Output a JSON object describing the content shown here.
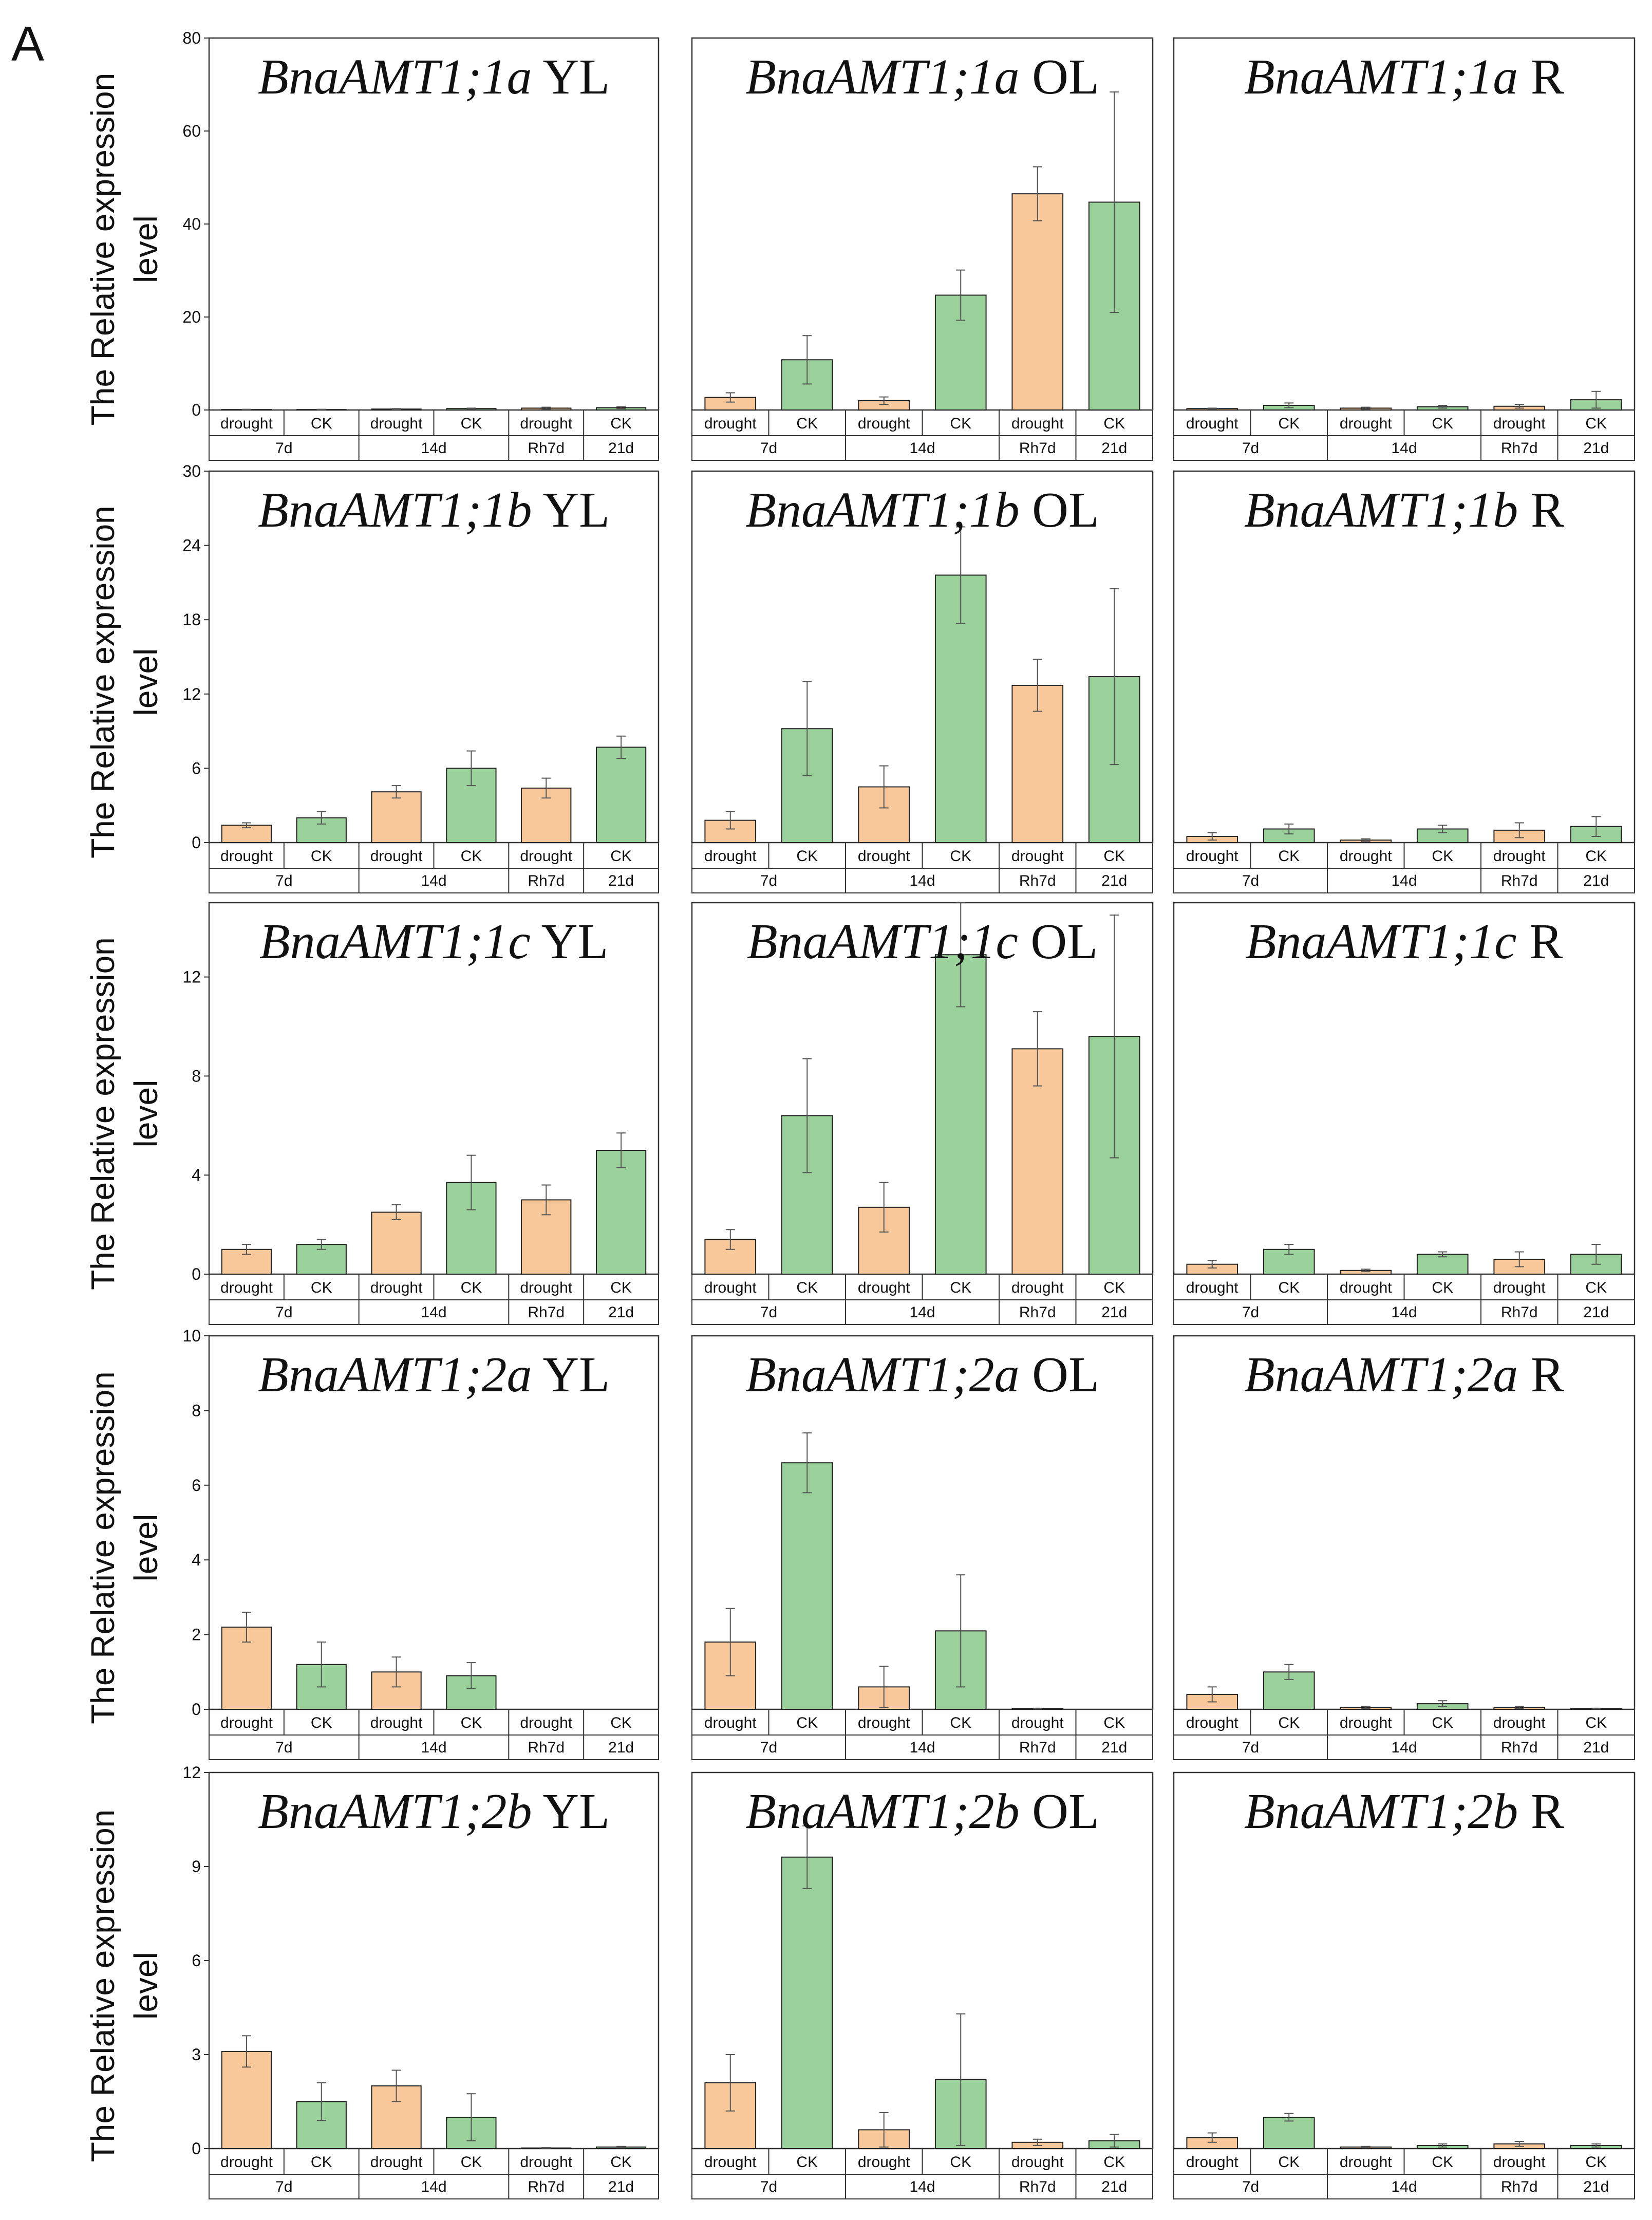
{
  "panel_letter": "A",
  "y_axis_label_line1": "The Relative expression",
  "y_axis_label_line2": "level",
  "colors": {
    "drought": "#f8c89a",
    "ck": "#9ad19a",
    "edge": "#222222",
    "error_bar": "#555555"
  },
  "chart_data": [
    {
      "type": "bar",
      "title_gene": "BnaAMT1;1a",
      "title_tissue": "YL",
      "ylim": [
        0,
        80
      ],
      "yticks": [
        0,
        20,
        40,
        60,
        80
      ],
      "categories": [
        "drought",
        "CK",
        "drought",
        "CK",
        "drought",
        "CK"
      ],
      "groups": [
        "7d",
        "14d",
        "Rh7d",
        "21d"
      ],
      "values": [
        0.1,
        0.1,
        0.2,
        0.3,
        0.4,
        0.5
      ],
      "errors": [
        0.05,
        0.05,
        0.1,
        0.1,
        0.2,
        0.2
      ]
    },
    {
      "type": "bar",
      "title_gene": "BnaAMT1;1a",
      "title_tissue": "OL",
      "ylim": [
        0,
        80
      ],
      "yticks": [
        0,
        20,
        40,
        60,
        80
      ],
      "categories": [
        "drought",
        "CK",
        "drought",
        "CK",
        "drought",
        "CK"
      ],
      "groups": [
        "7d",
        "14d",
        "Rh7d",
        "21d"
      ],
      "values": [
        2.7,
        10.8,
        2.0,
        24.7,
        46.5,
        44.7
      ],
      "errors": [
        1.0,
        5.2,
        0.8,
        5.4,
        5.8,
        23.7
      ]
    },
    {
      "type": "bar",
      "title_gene": "BnaAMT1;1a",
      "title_tissue": "R",
      "ylim": [
        0,
        80
      ],
      "yticks": [
        0,
        20,
        40,
        60,
        80
      ],
      "categories": [
        "drought",
        "CK",
        "drought",
        "CK",
        "drought",
        "CK"
      ],
      "groups": [
        "7d",
        "14d",
        "Rh7d",
        "21d"
      ],
      "values": [
        0.3,
        1.0,
        0.4,
        0.7,
        0.8,
        2.2
      ],
      "errors": [
        0.1,
        0.5,
        0.2,
        0.3,
        0.4,
        1.8
      ]
    },
    {
      "type": "bar",
      "title_gene": "BnaAMT1;1b",
      "title_tissue": "YL",
      "ylim": [
        0,
        30
      ],
      "yticks": [
        0,
        6,
        12,
        18,
        24,
        30
      ],
      "categories": [
        "drought",
        "CK",
        "drought",
        "CK",
        "drought",
        "CK"
      ],
      "groups": [
        "7d",
        "14d",
        "Rh7d",
        "21d"
      ],
      "values": [
        1.4,
        2.0,
        4.1,
        6.0,
        4.4,
        7.7
      ],
      "errors": [
        0.2,
        0.5,
        0.5,
        1.4,
        0.8,
        0.9
      ]
    },
    {
      "type": "bar",
      "title_gene": "BnaAMT1;1b",
      "title_tissue": "OL",
      "ylim": [
        0,
        30
      ],
      "yticks": [
        0,
        6,
        12,
        18,
        24,
        30
      ],
      "categories": [
        "drought",
        "CK",
        "drought",
        "CK",
        "drought",
        "CK"
      ],
      "groups": [
        "7d",
        "14d",
        "Rh7d",
        "21d"
      ],
      "values": [
        1.8,
        9.2,
        4.5,
        21.6,
        12.7,
        13.4
      ],
      "errors": [
        0.7,
        3.8,
        1.7,
        3.9,
        2.1,
        7.1
      ]
    },
    {
      "type": "bar",
      "title_gene": "BnaAMT1;1b",
      "title_tissue": "R",
      "ylim": [
        0,
        30
      ],
      "yticks": [
        0,
        6,
        12,
        18,
        24,
        30
      ],
      "categories": [
        "drought",
        "CK",
        "drought",
        "CK",
        "drought",
        "CK"
      ],
      "groups": [
        "7d",
        "14d",
        "Rh7d",
        "21d"
      ],
      "values": [
        0.5,
        1.1,
        0.2,
        1.1,
        1.0,
        1.3
      ],
      "errors": [
        0.3,
        0.4,
        0.1,
        0.3,
        0.6,
        0.8
      ]
    },
    {
      "type": "bar",
      "title_gene": "BnaAMT1;1c",
      "title_tissue": "YL",
      "ylim": [
        0,
        15
      ],
      "yticks": [
        0,
        4,
        8,
        12
      ],
      "categories": [
        "drought",
        "CK",
        "drought",
        "CK",
        "drought",
        "CK"
      ],
      "groups": [
        "7d",
        "14d",
        "Rh7d",
        "21d"
      ],
      "values": [
        1.0,
        1.2,
        2.5,
        3.7,
        3.0,
        5.0
      ],
      "errors": [
        0.2,
        0.2,
        0.3,
        1.1,
        0.6,
        0.7
      ]
    },
    {
      "type": "bar",
      "title_gene": "BnaAMT1;1c",
      "title_tissue": "OL",
      "ylim": [
        0,
        15
      ],
      "yticks": [
        0,
        4,
        8,
        12
      ],
      "categories": [
        "drought",
        "CK",
        "drought",
        "CK",
        "drought",
        "CK"
      ],
      "groups": [
        "7d",
        "14d",
        "Rh7d",
        "21d"
      ],
      "values": [
        1.4,
        6.4,
        2.7,
        12.9,
        9.1,
        9.6
      ],
      "errors": [
        0.4,
        2.3,
        1.0,
        2.1,
        1.5,
        4.9
      ]
    },
    {
      "type": "bar",
      "title_gene": "BnaAMT1;1c",
      "title_tissue": "R",
      "ylim": [
        0,
        15
      ],
      "yticks": [
        0,
        4,
        8,
        12
      ],
      "categories": [
        "drought",
        "CK",
        "drought",
        "CK",
        "drought",
        "CK"
      ],
      "groups": [
        "7d",
        "14d",
        "Rh7d",
        "21d"
      ],
      "values": [
        0.4,
        1.0,
        0.15,
        0.8,
        0.6,
        0.8
      ],
      "errors": [
        0.15,
        0.2,
        0.05,
        0.1,
        0.3,
        0.4
      ]
    },
    {
      "type": "bar",
      "title_gene": "BnaAMT1;2a",
      "title_tissue": "YL",
      "ylim": [
        0,
        10
      ],
      "yticks": [
        0,
        2,
        4,
        6,
        8,
        10
      ],
      "categories": [
        "drought",
        "CK",
        "drought",
        "CK",
        "drought",
        "CK"
      ],
      "groups": [
        "7d",
        "14d",
        "Rh7d",
        "21d"
      ],
      "values": [
        2.2,
        1.2,
        1.0,
        0.9,
        0.0,
        0.0
      ],
      "errors": [
        0.4,
        0.6,
        0.4,
        0.35,
        0.0,
        0.0
      ]
    },
    {
      "type": "bar",
      "title_gene": "BnaAMT1;2a",
      "title_tissue": "OL",
      "ylim": [
        0,
        10
      ],
      "yticks": [
        0,
        2,
        4,
        6,
        8,
        10
      ],
      "categories": [
        "drought",
        "CK",
        "drought",
        "CK",
        "drought",
        "CK"
      ],
      "groups": [
        "7d",
        "14d",
        "Rh7d",
        "21d"
      ],
      "values": [
        1.8,
        6.6,
        0.6,
        2.1,
        0.02,
        0.0
      ],
      "errors": [
        0.9,
        0.8,
        0.55,
        1.5,
        0.01,
        0.0
      ]
    },
    {
      "type": "bar",
      "title_gene": "BnaAMT1;2a",
      "title_tissue": "R",
      "ylim": [
        0,
        10
      ],
      "yticks": [
        0,
        2,
        4,
        6,
        8,
        10
      ],
      "categories": [
        "drought",
        "CK",
        "drought",
        "CK",
        "drought",
        "CK"
      ],
      "groups": [
        "7d",
        "14d",
        "Rh7d",
        "21d"
      ],
      "values": [
        0.4,
        1.0,
        0.05,
        0.15,
        0.05,
        0.02
      ],
      "errors": [
        0.2,
        0.2,
        0.03,
        0.08,
        0.03,
        0.01
      ]
    },
    {
      "type": "bar",
      "title_gene": "BnaAMT1;2b",
      "title_tissue": "YL",
      "ylim": [
        0,
        12
      ],
      "yticks": [
        0,
        3,
        6,
        9,
        12
      ],
      "categories": [
        "drought",
        "CK",
        "drought",
        "CK",
        "drought",
        "CK"
      ],
      "groups": [
        "7d",
        "14d",
        "Rh7d",
        "21d"
      ],
      "values": [
        3.1,
        1.5,
        2.0,
        1.0,
        0.02,
        0.05
      ],
      "errors": [
        0.5,
        0.6,
        0.5,
        0.75,
        0.01,
        0.02
      ]
    },
    {
      "type": "bar",
      "title_gene": "BnaAMT1;2b",
      "title_tissue": "OL",
      "ylim": [
        0,
        12
      ],
      "yticks": [
        0,
        3,
        6,
        9,
        12
      ],
      "categories": [
        "drought",
        "CK",
        "drought",
        "CK",
        "drought",
        "CK"
      ],
      "groups": [
        "7d",
        "14d",
        "Rh7d",
        "21d"
      ],
      "values": [
        2.1,
        9.3,
        0.6,
        2.2,
        0.2,
        0.25
      ],
      "errors": [
        0.9,
        1.0,
        0.55,
        2.1,
        0.1,
        0.2
      ]
    },
    {
      "type": "bar",
      "title_gene": "BnaAMT1;2b",
      "title_tissue": "R",
      "ylim": [
        0,
        12
      ],
      "yticks": [
        0,
        3,
        6,
        9,
        12
      ],
      "categories": [
        "drought",
        "CK",
        "drought",
        "CK",
        "drought",
        "CK"
      ],
      "groups": [
        "7d",
        "14d",
        "Rh7d",
        "21d"
      ],
      "values": [
        0.35,
        1.0,
        0.05,
        0.1,
        0.15,
        0.1
      ],
      "errors": [
        0.15,
        0.12,
        0.02,
        0.05,
        0.08,
        0.05
      ]
    }
  ]
}
